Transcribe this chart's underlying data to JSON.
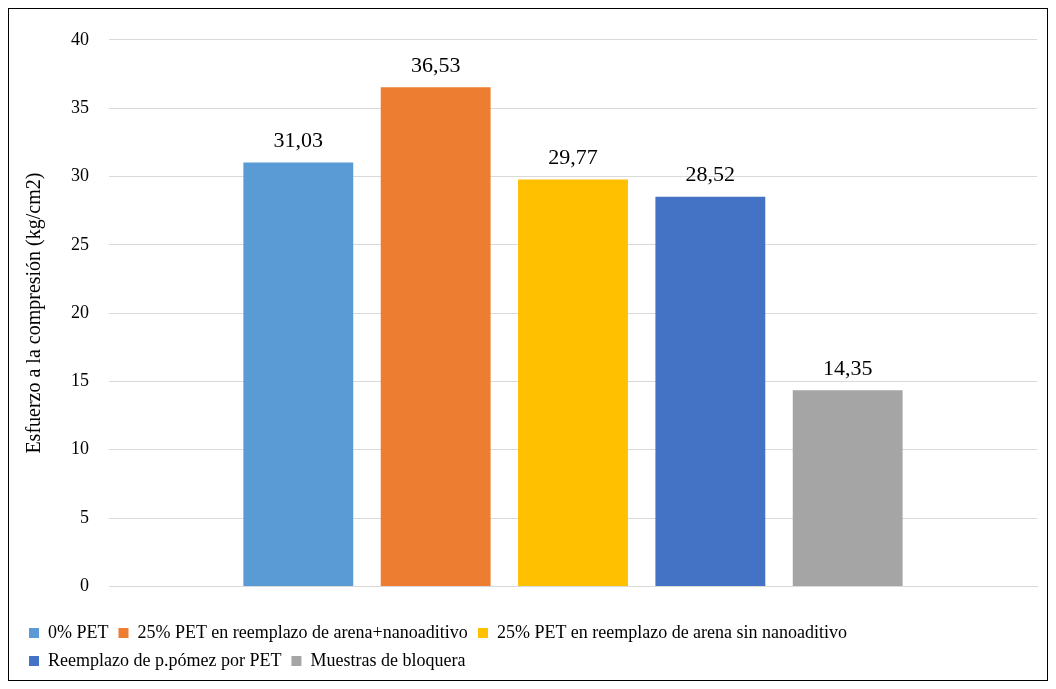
{
  "chart_data": {
    "type": "bar",
    "ylabel": "Esfuerzo a la compresión (kg/cm2)",
    "categories": [
      null
    ],
    "series": [
      {
        "name": "0% PET",
        "color": "#5b9bd5",
        "values": [
          31.03
        ],
        "value_labels": [
          "31,03"
        ]
      },
      {
        "name": "25% PET en reemplazo de arena+nanoaditivo",
        "color": "#ed7d31",
        "values": [
          36.53
        ],
        "value_labels": [
          "36,53"
        ]
      },
      {
        "name": "25% PET en reemplazo de arena sin nanoaditivo",
        "color": "#ffc000",
        "values": [
          29.77
        ],
        "value_labels": [
          "29,77"
        ]
      },
      {
        "name": "Reemplazo de p.pómez por PET",
        "color": "#4472c4",
        "values": [
          28.52
        ],
        "value_labels": [
          "28,52"
        ]
      },
      {
        "name": "Muestras de bloquera",
        "color": "#a5a5a5",
        "values": [
          14.35
        ],
        "value_labels": [
          "14,35"
        ]
      }
    ],
    "ylim": [
      0,
      40
    ],
    "yticks": [
      0,
      5,
      10,
      15,
      20,
      25,
      30,
      35,
      40
    ],
    "grid": "y",
    "legend": "bottom"
  }
}
